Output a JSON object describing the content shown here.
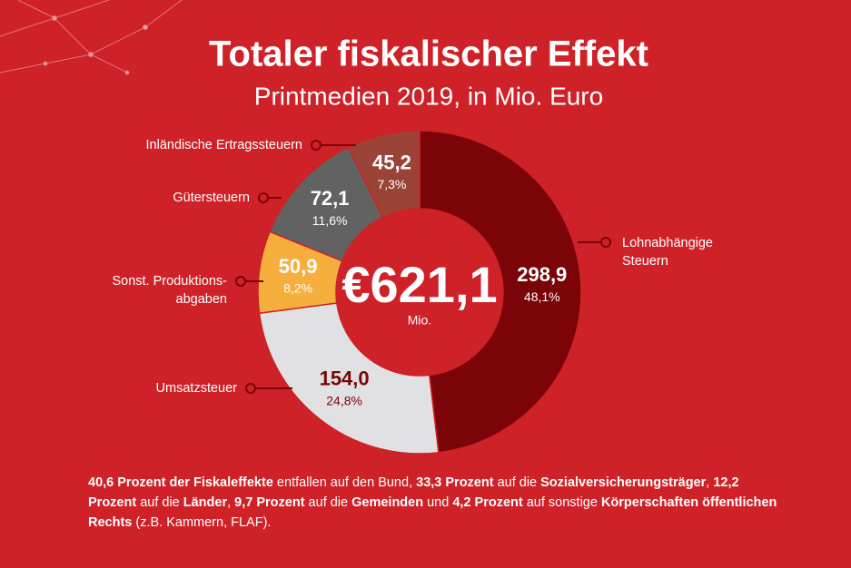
{
  "chart_data": {
    "type": "donut",
    "title": "Totaler fiskalischer Effekt",
    "subtitle": "Printmedien 2019, in Mio. Euro",
    "categories": [
      "Lohnabhängige\nSteuern",
      "Umsatzsteuer",
      "Sonst. Produktions-\nabgaben",
      "Gütersteuern",
      "Inländische Ertragssteuern"
    ],
    "values": [
      298.9,
      154.0,
      50.9,
      72.1,
      45.2
    ],
    "value_labels": [
      "298,9",
      "154,0",
      "50,9",
      "72,1",
      "45,2"
    ],
    "shares": [
      48.1,
      24.8,
      8.2,
      11.6,
      7.3
    ],
    "share_labels": [
      "48,1%",
      "24,8%",
      "8,2%",
      "11,6%",
      "7,3%"
    ],
    "colors": [
      "#7a0407",
      "#e1e1e3",
      "#f6ae3d",
      "#626262",
      "#9b4336"
    ],
    "label_colors": [
      "#ffffff",
      "#7a0407",
      "#ffffff",
      "#ffffff",
      "#ffffff"
    ],
    "center_label": "€621,1",
    "center_unit": "Mio."
  },
  "footnote": [
    {
      "text": "40,6 Prozent der Fiskaleffekte",
      "bold": true
    },
    {
      "text": " entfallen auf den Bund, ",
      "bold": false
    },
    {
      "text": "33,3 Prozent",
      "bold": true
    },
    {
      "text": " auf die ",
      "bold": false
    },
    {
      "text": "Sozialversicherungsträger",
      "bold": true
    },
    {
      "text": ", ",
      "bold": false
    },
    {
      "text": "12,2 Prozent",
      "bold": true
    },
    {
      "text": " auf die ",
      "bold": false
    },
    {
      "text": "Länder",
      "bold": true
    },
    {
      "text": ", ",
      "bold": false
    },
    {
      "text": "9,7 Prozent",
      "bold": true
    },
    {
      "text": " auf die ",
      "bold": false
    },
    {
      "text": "Gemeinden",
      "bold": true
    },
    {
      "text": " und ",
      "bold": false
    },
    {
      "text": "4,2 Prozent",
      "bold": true
    },
    {
      "text": " auf sonstige ",
      "bold": false
    },
    {
      "text": "Körperschaften öffentlichen Rechts",
      "bold": true
    },
    {
      "text": " (z.B. Kammern, FLAF).",
      "bold": false
    }
  ]
}
